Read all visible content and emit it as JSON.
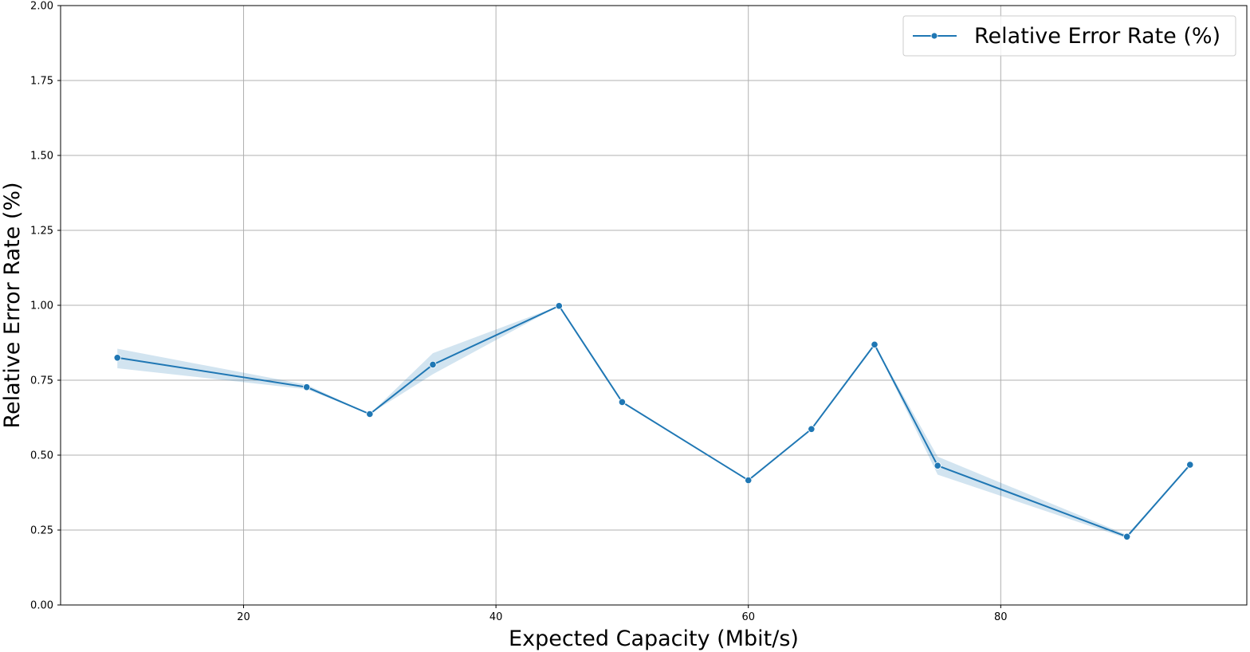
{
  "chart_data": {
    "type": "line",
    "title": "",
    "xlabel": "Expected Capacity (Mbit/s)",
    "ylabel": "Relative Error Rate (%)",
    "xlim": [
      5.5,
      99.5
    ],
    "ylim": [
      0,
      2
    ],
    "x_ticks": [
      20,
      40,
      60,
      80
    ],
    "y_ticks": [
      0,
      0.25,
      0.5,
      0.75,
      1.0,
      1.25,
      1.5,
      1.75,
      2.0
    ],
    "x_tick_labels": [
      "20",
      "40",
      "60",
      "80"
    ],
    "y_tick_labels": [
      "0.00",
      "0.25",
      "0.50",
      "0.75",
      "1.00",
      "1.25",
      "1.50",
      "1.75",
      "2.00"
    ],
    "grid": true,
    "legend": {
      "position": "top-right",
      "entries": [
        "Relative Error Rate (%)"
      ]
    },
    "series": [
      {
        "name": "Relative Error Rate (%)",
        "color": "#1f77b4",
        "marker": "circle",
        "x": [
          10,
          25,
          30,
          35,
          45,
          50,
          60,
          65,
          70,
          75,
          90,
          95
        ],
        "y": [
          0.825,
          0.727,
          0.637,
          0.802,
          0.998,
          0.677,
          0.416,
          0.587,
          0.869,
          0.465,
          0.228,
          0.468
        ],
        "ci_lower": [
          0.79,
          0.72,
          0.637,
          0.77,
          0.998,
          0.677,
          0.416,
          0.587,
          0.869,
          0.435,
          0.222,
          0.468
        ],
        "ci_upper": [
          0.855,
          0.735,
          0.637,
          0.84,
          0.998,
          0.677,
          0.416,
          0.587,
          0.869,
          0.495,
          0.234,
          0.468
        ]
      }
    ]
  }
}
